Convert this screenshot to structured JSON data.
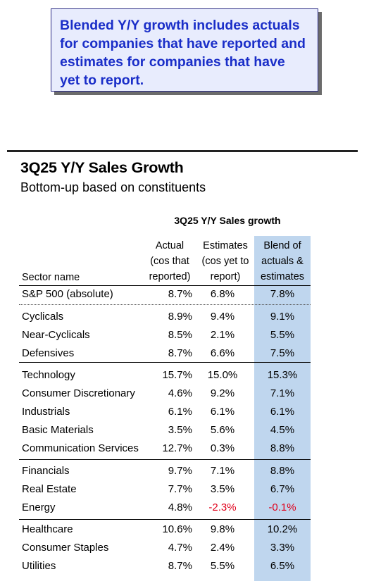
{
  "note": {
    "text": "Blended Y/Y growth includes actuals\nfor companies that have reported and\nestimates for companies that have\nyet to report."
  },
  "title": "3Q25 Y/Y Sales Growth",
  "subtitle": "Bottom-up based on constituents",
  "colors": {
    "note_text": "#1a2ec8",
    "note_bg": "#e8ecfd",
    "blend_bg": "#bfd6ee",
    "negative": "#e0001b"
  },
  "table": {
    "group_header": "3Q25 Y/Y Sales growth",
    "sector_header": "Sector name",
    "columns": [
      {
        "lines": [
          "Actual",
          "(cos that",
          "reported)"
        ]
      },
      {
        "lines": [
          "Estimates",
          "(cos yet to",
          "report)"
        ]
      },
      {
        "lines": [
          "Blend of",
          "actuals &",
          "estimates"
        ]
      }
    ],
    "rows": [
      {
        "sector": "S&P 500 (absolute)",
        "actual": "8.7%",
        "estimate": "6.8%",
        "blend": "7.8%"
      },
      {
        "sector": "Cyclicals",
        "actual": "8.9%",
        "estimate": "9.4%",
        "blend": "9.1%"
      },
      {
        "sector": "Near-Cyclicals",
        "actual": "8.5%",
        "estimate": "2.1%",
        "blend": "5.5%"
      },
      {
        "sector": "Defensives",
        "actual": "8.7%",
        "estimate": "6.6%",
        "blend": "7.5%"
      },
      {
        "sector": "Technology",
        "actual": "15.7%",
        "estimate": "15.0%",
        "blend": "15.3%"
      },
      {
        "sector": "Consumer Discretionary",
        "actual": "4.6%",
        "estimate": "9.2%",
        "blend": "7.1%"
      },
      {
        "sector": "Industrials",
        "actual": "6.1%",
        "estimate": "6.1%",
        "blend": "6.1%"
      },
      {
        "sector": "Basic Materials",
        "actual": "3.5%",
        "estimate": "5.6%",
        "blend": "4.5%"
      },
      {
        "sector": "Communication Services",
        "actual": "12.7%",
        "estimate": "0.3%",
        "blend": "8.8%"
      },
      {
        "sector": "Financials",
        "actual": "9.7%",
        "estimate": "7.1%",
        "blend": "8.8%"
      },
      {
        "sector": "Real Estate",
        "actual": "7.7%",
        "estimate": "3.5%",
        "blend": "6.7%"
      },
      {
        "sector": "Energy",
        "actual": "4.8%",
        "estimate": "-2.3%",
        "blend": "-0.1%"
      },
      {
        "sector": "Healthcare",
        "actual": "10.6%",
        "estimate": "9.8%",
        "blend": "10.2%"
      },
      {
        "sector": "Consumer Staples",
        "actual": "4.7%",
        "estimate": "2.4%",
        "blend": "3.3%"
      },
      {
        "sector": "Utilities",
        "actual": "8.7%",
        "estimate": "5.5%",
        "blend": "6.5%"
      }
    ]
  }
}
